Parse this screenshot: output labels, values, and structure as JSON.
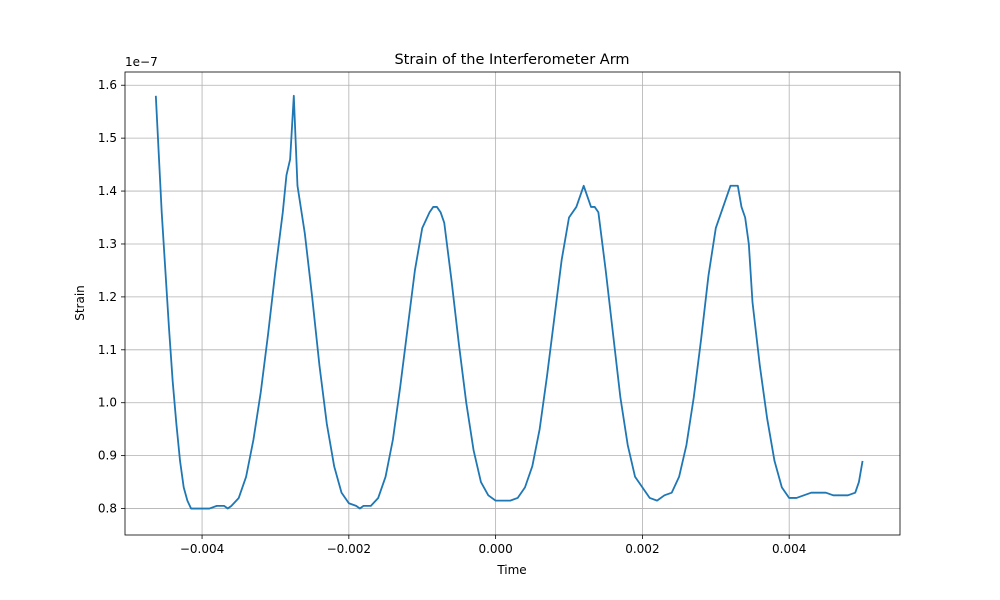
{
  "chart_data": {
    "type": "line",
    "title": "Strain of the Interferometer Arm",
    "xlabel": "Time",
    "ylabel": "Strain",
    "y_offset_label": "1e−7",
    "xlim": [
      -0.00505,
      0.00551
    ],
    "ylim": [
      0.75,
      1.625
    ],
    "x_ticks": [
      -0.004,
      -0.002,
      0.0,
      0.002,
      0.004
    ],
    "x_tick_labels": [
      "−0.004",
      "−0.002",
      "0.000",
      "0.002",
      "0.004"
    ],
    "y_ticks": [
      0.8,
      0.9,
      1.0,
      1.1,
      1.2,
      1.3,
      1.4,
      1.5,
      1.6
    ],
    "y_tick_labels": [
      "0.8",
      "0.9",
      "1.0",
      "1.1",
      "1.2",
      "1.3",
      "1.4",
      "1.5",
      "1.6"
    ],
    "grid": true,
    "line_color": "#1f77b4",
    "series": [
      {
        "x": [
          -0.00463,
          -0.00455,
          -0.0045,
          -0.00445,
          -0.0044,
          -0.00435,
          -0.0043,
          -0.00425,
          -0.0042,
          -0.00415,
          -0.0041,
          -0.00405,
          -0.004,
          -0.0039,
          -0.0038,
          -0.0037,
          -0.00365,
          -0.0036,
          -0.0035,
          -0.0034,
          -0.0033,
          -0.0032,
          -0.0031,
          -0.003,
          -0.0029,
          -0.00285,
          -0.0028,
          -0.00275,
          -0.0027,
          -0.0026,
          -0.0025,
          -0.0024,
          -0.0023,
          -0.0022,
          -0.0021,
          -0.002,
          -0.0019,
          -0.00185,
          -0.0018,
          -0.0017,
          -0.0016,
          -0.0015,
          -0.0014,
          -0.0013,
          -0.0012,
          -0.0011,
          -0.001,
          -0.0009,
          -0.00085,
          -0.0008,
          -0.00075,
          -0.0007,
          -0.0006,
          -0.0005,
          -0.0004,
          -0.0003,
          -0.0002,
          -0.0001,
          0.0,
          0.0001,
          0.0002,
          0.0003,
          0.0004,
          0.0005,
          0.0006,
          0.0007,
          0.0008,
          0.0009,
          0.001,
          0.0011,
          0.0012,
          0.0013,
          0.00135,
          0.0014,
          0.0015,
          0.0016,
          0.0017,
          0.0018,
          0.0019,
          0.002,
          0.0021,
          0.0022,
          0.0023,
          0.0024,
          0.0025,
          0.0026,
          0.0027,
          0.0028,
          0.0029,
          0.003,
          0.0031,
          0.0032,
          0.00325,
          0.0033,
          0.00335,
          0.0034,
          0.00345,
          0.0035,
          0.0036,
          0.0037,
          0.0038,
          0.0039,
          0.004,
          0.0041,
          0.0042,
          0.0043,
          0.0044,
          0.0045,
          0.0046,
          0.0047,
          0.0048,
          0.0049,
          0.00495,
          0.005
        ],
        "y": [
          1.58,
          1.36,
          1.25,
          1.14,
          1.04,
          0.96,
          0.89,
          0.84,
          0.815,
          0.8,
          0.8,
          0.8,
          0.8,
          0.8,
          0.805,
          0.805,
          0.8,
          0.805,
          0.82,
          0.86,
          0.93,
          1.02,
          1.13,
          1.25,
          1.36,
          1.43,
          1.46,
          1.58,
          1.41,
          1.32,
          1.2,
          1.07,
          0.96,
          0.88,
          0.83,
          0.81,
          0.805,
          0.8,
          0.805,
          0.805,
          0.82,
          0.86,
          0.93,
          1.03,
          1.14,
          1.25,
          1.33,
          1.36,
          1.37,
          1.37,
          1.36,
          1.34,
          1.23,
          1.11,
          1.0,
          0.91,
          0.85,
          0.825,
          0.815,
          0.815,
          0.815,
          0.82,
          0.84,
          0.88,
          0.95,
          1.05,
          1.16,
          1.27,
          1.35,
          1.37,
          1.41,
          1.37,
          1.37,
          1.36,
          1.25,
          1.13,
          1.01,
          0.92,
          0.86,
          0.84,
          0.82,
          0.815,
          0.825,
          0.83,
          0.86,
          0.92,
          1.01,
          1.12,
          1.24,
          1.33,
          1.37,
          1.41,
          1.41,
          1.41,
          1.37,
          1.35,
          1.3,
          1.19,
          1.07,
          0.97,
          0.89,
          0.84,
          0.82,
          0.82,
          0.825,
          0.83,
          0.83,
          0.83,
          0.825,
          0.825,
          0.825,
          0.83,
          0.85,
          0.89
        ]
      }
    ]
  }
}
